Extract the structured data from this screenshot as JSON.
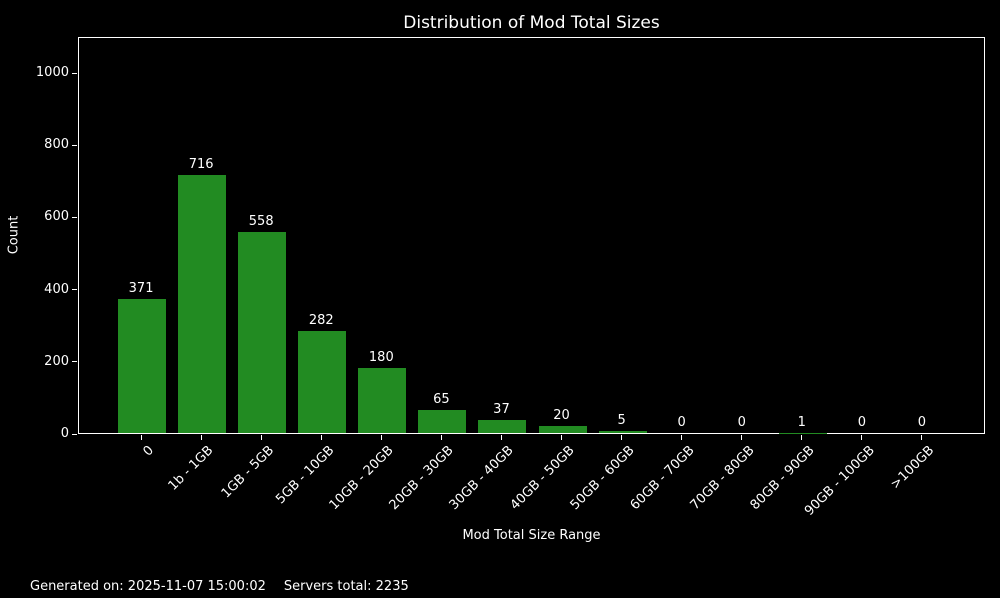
{
  "title": "Distribution of Mod Total Sizes",
  "footer": {
    "generated": "Generated on: 2025-11-07 15:00:02",
    "servers_total": "Servers total: 2235"
  },
  "chart_data": {
    "type": "bar",
    "title": "Distribution of Mod Total Sizes",
    "categories": [
      "0",
      "1b - 1GB",
      "1GB - 5GB",
      "5GB - 10GB",
      "10GB - 20GB",
      "20GB - 30GB",
      "30GB - 40GB",
      "40GB - 50GB",
      "50GB - 60GB",
      "60GB - 70GB",
      "70GB - 80GB",
      "80GB - 90GB",
      "90GB - 100GB",
      ">100GB"
    ],
    "values": [
      371,
      716,
      558,
      282,
      180,
      65,
      37,
      20,
      5,
      0,
      0,
      1,
      0,
      0
    ],
    "xlabel": "Mod Total Size Range",
    "ylabel": "Count",
    "ylim": [
      0,
      1100
    ],
    "yticks": [
      0,
      200,
      400,
      600,
      800,
      1000
    ],
    "bar_color": "#228B22",
    "background_color": "#000000",
    "text_color": "#ffffff",
    "axis_color": "#ffffff",
    "grid": false,
    "bar_value_labels_shown": true,
    "x_tick_rotation_deg": 45,
    "legend": null
  }
}
